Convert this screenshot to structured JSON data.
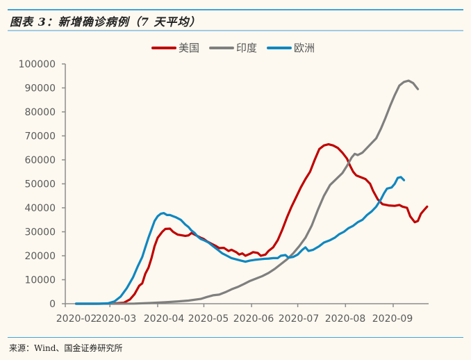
{
  "header": {
    "title": "图表 3：新增确诊病例（7 天平均）"
  },
  "footer": {
    "source": "来源：Wind、国金证券研究所"
  },
  "chart_data": {
    "type": "line",
    "title": "图表 3：新增确诊病例（7 天平均）",
    "xlabel": "",
    "ylabel": "",
    "x_tick_labels": [
      "2020-02",
      "2020-03",
      "2020-04",
      "2020-05",
      "2020-06",
      "2020-07",
      "2020-08",
      "2020-09"
    ],
    "y_tick_labels": [
      "0",
      "10000",
      "20000",
      "30000",
      "40000",
      "50000",
      "60000",
      "70000",
      "80000",
      "90000",
      "100000"
    ],
    "ylim": [
      0,
      100000
    ],
    "x_unit": "days since 2020-02-01",
    "xlim": [
      0,
      235
    ],
    "grid": false,
    "legend_position": "top-center",
    "series": [
      {
        "name": "美国",
        "color": "#c00000",
        "points": [
          [
            7,
            0
          ],
          [
            20,
            0
          ],
          [
            30,
            50
          ],
          [
            38,
            400
          ],
          [
            42,
            1800
          ],
          [
            45,
            4000
          ],
          [
            48,
            7500
          ],
          [
            50,
            8500
          ],
          [
            52,
            12500
          ],
          [
            54,
            15000
          ],
          [
            56,
            19000
          ],
          [
            58,
            24000
          ],
          [
            60,
            27500
          ],
          [
            63,
            30000
          ],
          [
            65,
            31200
          ],
          [
            68,
            31300
          ],
          [
            70,
            30000
          ],
          [
            73,
            28800
          ],
          [
            76,
            28500
          ],
          [
            78,
            28300
          ],
          [
            80,
            28500
          ],
          [
            82,
            29500
          ],
          [
            85,
            28500
          ],
          [
            88,
            27500
          ],
          [
            90,
            27000
          ],
          [
            92,
            26000
          ],
          [
            95,
            25000
          ],
          [
            98,
            24000
          ],
          [
            100,
            23200
          ],
          [
            103,
            23300
          ],
          [
            106,
            22000
          ],
          [
            108,
            22500
          ],
          [
            111,
            21500
          ],
          [
            113,
            20500
          ],
          [
            115,
            21000
          ],
          [
            117,
            20000
          ],
          [
            120,
            20800
          ],
          [
            122,
            21500
          ],
          [
            125,
            21200
          ],
          [
            127,
            20000
          ],
          [
            130,
            20500
          ],
          [
            132,
            22000
          ],
          [
            135,
            23500
          ],
          [
            138,
            26500
          ],
          [
            141,
            31000
          ],
          [
            144,
            36000
          ],
          [
            147,
            40500
          ],
          [
            150,
            44500
          ],
          [
            153,
            48500
          ],
          [
            156,
            52000
          ],
          [
            159,
            55000
          ],
          [
            162,
            60000
          ],
          [
            165,
            64500
          ],
          [
            168,
            66000
          ],
          [
            171,
            66500
          ],
          [
            174,
            66000
          ],
          [
            177,
            65000
          ],
          [
            180,
            63000
          ],
          [
            183,
            60500
          ],
          [
            185,
            57500
          ],
          [
            187,
            55000
          ],
          [
            189,
            53500
          ],
          [
            191,
            53000
          ],
          [
            193,
            52500
          ],
          [
            195,
            52000
          ],
          [
            198,
            50000
          ],
          [
            200,
            47000
          ],
          [
            203,
            43500
          ],
          [
            206,
            41500
          ],
          [
            210,
            41000
          ],
          [
            214,
            40800
          ],
          [
            217,
            41200
          ],
          [
            219,
            40500
          ],
          [
            222,
            40000
          ],
          [
            224,
            36500
          ],
          [
            227,
            34000
          ],
          [
            229,
            34500
          ],
          [
            231,
            37500
          ],
          [
            233,
            39000
          ],
          [
            235,
            40500
          ]
        ]
      },
      {
        "name": "印度",
        "color": "#7f7f7f",
        "points": [
          [
            7,
            0
          ],
          [
            30,
            0
          ],
          [
            45,
            50
          ],
          [
            55,
            300
          ],
          [
            65,
            600
          ],
          [
            72,
            900
          ],
          [
            80,
            1300
          ],
          [
            88,
            2000
          ],
          [
            92,
            2800
          ],
          [
            96,
            3500
          ],
          [
            100,
            3800
          ],
          [
            104,
            4800
          ],
          [
            108,
            6000
          ],
          [
            112,
            7000
          ],
          [
            116,
            8200
          ],
          [
            120,
            9500
          ],
          [
            124,
            10500
          ],
          [
            128,
            11500
          ],
          [
            132,
            12800
          ],
          [
            136,
            14500
          ],
          [
            140,
            16500
          ],
          [
            144,
            18500
          ],
          [
            148,
            21000
          ],
          [
            152,
            24000
          ],
          [
            156,
            27500
          ],
          [
            160,
            32500
          ],
          [
            164,
            39000
          ],
          [
            168,
            45000
          ],
          [
            172,
            49500
          ],
          [
            176,
            52000
          ],
          [
            180,
            54500
          ],
          [
            183,
            57500
          ],
          [
            186,
            61000
          ],
          [
            188,
            62500
          ],
          [
            190,
            62000
          ],
          [
            193,
            63000
          ],
          [
            196,
            65000
          ],
          [
            199,
            67000
          ],
          [
            202,
            69000
          ],
          [
            205,
            73000
          ],
          [
            208,
            77500
          ],
          [
            211,
            82500
          ],
          [
            214,
            87000
          ],
          [
            217,
            91000
          ],
          [
            220,
            92500
          ],
          [
            223,
            93000
          ],
          [
            226,
            92000
          ],
          [
            229,
            89500
          ]
        ]
      },
      {
        "name": "欧洲",
        "color": "#0e87c0",
        "points": [
          [
            7,
            0
          ],
          [
            22,
            0
          ],
          [
            28,
            200
          ],
          [
            32,
            1000
          ],
          [
            36,
            3000
          ],
          [
            40,
            6500
          ],
          [
            44,
            11000
          ],
          [
            47,
            15500
          ],
          [
            50,
            19500
          ],
          [
            52,
            23500
          ],
          [
            54,
            27500
          ],
          [
            56,
            31000
          ],
          [
            58,
            34500
          ],
          [
            60,
            36500
          ],
          [
            62,
            37500
          ],
          [
            64,
            37800
          ],
          [
            66,
            37000
          ],
          [
            68,
            37000
          ],
          [
            70,
            36500
          ],
          [
            72,
            36000
          ],
          [
            75,
            35000
          ],
          [
            78,
            33000
          ],
          [
            80,
            32000
          ],
          [
            82,
            30500
          ],
          [
            84,
            29500
          ],
          [
            86,
            28000
          ],
          [
            88,
            27000
          ],
          [
            90,
            26500
          ],
          [
            93,
            25500
          ],
          [
            96,
            24000
          ],
          [
            99,
            22500
          ],
          [
            102,
            21000
          ],
          [
            105,
            20000
          ],
          [
            108,
            19000
          ],
          [
            111,
            18500
          ],
          [
            114,
            18000
          ],
          [
            117,
            17500
          ],
          [
            120,
            18000
          ],
          [
            123,
            18300
          ],
          [
            126,
            18500
          ],
          [
            129,
            18700
          ],
          [
            132,
            18800
          ],
          [
            135,
            19000
          ],
          [
            138,
            19000
          ],
          [
            140,
            20000
          ],
          [
            143,
            20300
          ],
          [
            145,
            19200
          ],
          [
            148,
            19500
          ],
          [
            151,
            20500
          ],
          [
            154,
            22500
          ],
          [
            156,
            23500
          ],
          [
            158,
            22000
          ],
          [
            161,
            22500
          ],
          [
            165,
            24000
          ],
          [
            168,
            25500
          ],
          [
            172,
            26500
          ],
          [
            175,
            27500
          ],
          [
            178,
            29000
          ],
          [
            181,
            30000
          ],
          [
            184,
            31500
          ],
          [
            187,
            32500
          ],
          [
            190,
            34000
          ],
          [
            193,
            35000
          ],
          [
            196,
            37000
          ],
          [
            199,
            38500
          ],
          [
            202,
            40500
          ],
          [
            205,
            43500
          ],
          [
            207,
            46000
          ],
          [
            209,
            48000
          ],
          [
            212,
            48500
          ],
          [
            214,
            50000
          ],
          [
            216,
            52500
          ],
          [
            218,
            52800
          ],
          [
            220,
            51500
          ]
        ]
      }
    ]
  }
}
